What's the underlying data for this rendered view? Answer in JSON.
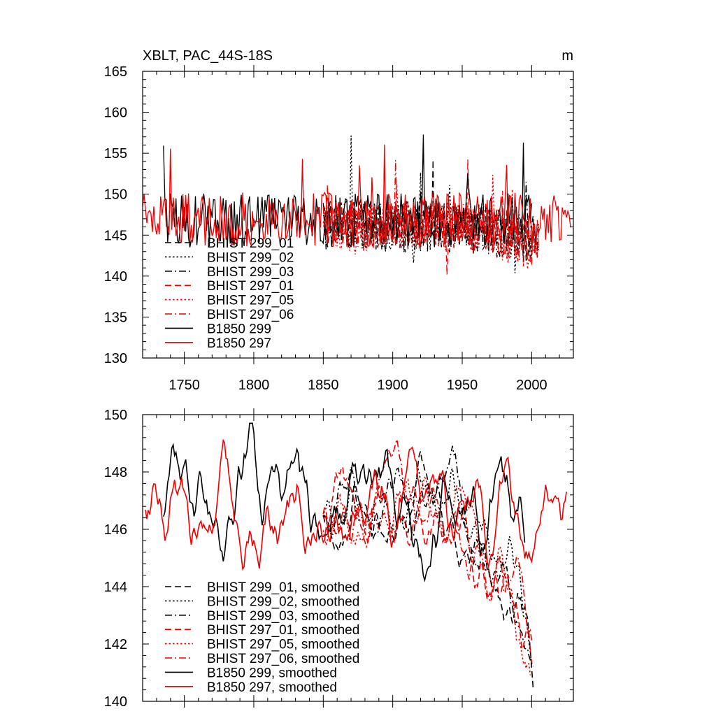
{
  "chart_data": [
    {
      "type": "line",
      "title": "XBLT, PAC_44S-18S",
      "units": "m",
      "xlim": [
        1720,
        2030
      ],
      "ylim": [
        130,
        165
      ],
      "x_ticks": [
        "1750",
        "1800",
        "1850",
        "1900",
        "1950",
        "2000"
      ],
      "y_ticks": [
        "130",
        "135",
        "140",
        "145",
        "150",
        "155",
        "160",
        "165"
      ],
      "legend_position": "bottom-left",
      "series": [
        {
          "name": "BHIST 299_01",
          "color": "#000000",
          "dash": "dashed",
          "x_range": [
            1850,
            2005
          ],
          "mean": 146.0,
          "trend_end": -2.0,
          "amp": 3.2,
          "seed": 11
        },
        {
          "name": "BHIST 299_02",
          "color": "#000000",
          "dash": "dotted",
          "x_range": [
            1850,
            2005
          ],
          "mean": 146.2,
          "trend_end": -2.5,
          "amp": 3.0,
          "seed": 23
        },
        {
          "name": "BHIST 299_03",
          "color": "#000000",
          "dash": "dashdot",
          "x_range": [
            1850,
            2005
          ],
          "mean": 146.1,
          "trend_end": -2.2,
          "amp": 3.2,
          "seed": 37
        },
        {
          "name": "BHIST 297_01",
          "color": "#ee0000",
          "dash": "dashed",
          "x_range": [
            1850,
            2005
          ],
          "mean": 146.3,
          "trend_end": -2.4,
          "amp": 3.0,
          "seed": 41
        },
        {
          "name": "BHIST 297_05",
          "color": "#ee0000",
          "dash": "dotted",
          "x_range": [
            1850,
            2005
          ],
          "mean": 146.0,
          "trend_end": -2.8,
          "amp": 3.0,
          "seed": 53
        },
        {
          "name": "BHIST 297_06",
          "color": "#ee0000",
          "dash": "dashdot",
          "x_range": [
            1850,
            2005
          ],
          "mean": 146.4,
          "trend_end": -2.3,
          "amp": 3.0,
          "seed": 67
        },
        {
          "name": "B1850 299",
          "color": "#000000",
          "dash": "solid",
          "x_range": [
            1735,
            2000
          ],
          "mean": 146.8,
          "trend_end": 0,
          "amp": 3.3,
          "seed": 79
        },
        {
          "name": "B1850 297",
          "color": "#ee0000",
          "dash": "solid",
          "x_range": [
            1720,
            2028
          ],
          "mean": 146.9,
          "trend_end": 0,
          "amp": 3.3,
          "seed": 97
        }
      ]
    },
    {
      "type": "line",
      "title": "",
      "xlim": [
        1720,
        2030
      ],
      "ylim": [
        140,
        150
      ],
      "y_ticks": [
        "140",
        "142",
        "144",
        "146",
        "148",
        "150"
      ],
      "legend_position": "bottom-left",
      "series": [
        {
          "name": "BHIST 299_01, smoothed",
          "color": "#000000",
          "dash": "dashed",
          "x_range": [
            1850,
            2001
          ],
          "mean": 146.6,
          "trend_end": -4.8,
          "amp": 0.9,
          "seed": 11
        },
        {
          "name": "BHIST 299_02, smoothed",
          "color": "#000000",
          "dash": "dotted",
          "x_range": [
            1850,
            2001
          ],
          "mean": 146.7,
          "trend_end": -4.2,
          "amp": 0.9,
          "seed": 23
        },
        {
          "name": "BHIST 299_03, smoothed",
          "color": "#000000",
          "dash": "dashdot",
          "x_range": [
            1850,
            2001
          ],
          "mean": 146.5,
          "trend_end": -4.5,
          "amp": 0.9,
          "seed": 37
        },
        {
          "name": "BHIST 297_01, smoothed",
          "color": "#ee0000",
          "dash": "dashed",
          "x_range": [
            1850,
            2000
          ],
          "mean": 146.6,
          "trend_end": -4.4,
          "amp": 0.9,
          "seed": 41
        },
        {
          "name": "BHIST 297_05, smoothed",
          "color": "#ee0000",
          "dash": "dotted",
          "x_range": [
            1850,
            1999
          ],
          "mean": 146.3,
          "trend_end": -4.8,
          "amp": 0.9,
          "seed": 53
        },
        {
          "name": "BHIST 297_06, smoothed",
          "color": "#ee0000",
          "dash": "dashdot",
          "x_range": [
            1850,
            2000
          ],
          "mean": 146.7,
          "trend_end": -4.3,
          "amp": 0.9,
          "seed": 67
        },
        {
          "name": "B1850 299, smoothed",
          "color": "#000000",
          "dash": "solid",
          "x_range": [
            1735,
            1995
          ],
          "mean": 146.9,
          "trend_end": 0,
          "amp": 1.3,
          "seed": 79
        },
        {
          "name": "B1850 297, smoothed",
          "color": "#ee0000",
          "dash": "solid",
          "x_range": [
            1722,
            2025
          ],
          "mean": 147.0,
          "trend_end": 0,
          "amp": 1.2,
          "seed": 97
        }
      ]
    }
  ]
}
